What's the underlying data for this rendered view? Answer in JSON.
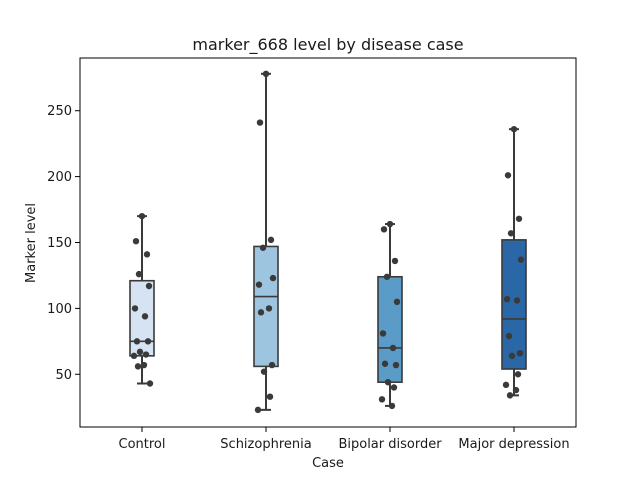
{
  "chart_data": {
    "type": "box",
    "title": "marker_668 level by disease case",
    "xlabel": "Case",
    "ylabel": "Marker level",
    "ylim": [
      10,
      290
    ],
    "yticks": [
      50,
      100,
      150,
      200,
      250
    ],
    "grid": false,
    "categories": [
      "Control",
      "Schizophrenia",
      "Bipolar disorder",
      "Major depression"
    ],
    "colors": [
      "#d6e3f2",
      "#9ec5e0",
      "#5b9bc8",
      "#2a67a6"
    ],
    "boxes": [
      {
        "whisker_low": 43,
        "q1": 64,
        "median": 75,
        "q3": 121,
        "whisker_high": 170
      },
      {
        "whisker_low": 23,
        "q1": 56,
        "median": 109,
        "q3": 147,
        "whisker_high": 278
      },
      {
        "whisker_low": 26,
        "q1": 44,
        "median": 70,
        "q3": 124,
        "whisker_high": 164
      },
      {
        "whisker_low": 34,
        "q1": 54,
        "median": 92,
        "q3": 152,
        "whisker_high": 236
      }
    ],
    "points": [
      [
        170,
        151,
        141,
        126,
        117,
        100,
        94,
        75,
        75,
        67,
        65,
        64,
        57,
        56,
        43
      ],
      [
        278,
        241,
        152,
        146,
        123,
        118,
        100,
        97,
        57,
        52,
        33,
        23
      ],
      [
        164,
        160,
        136,
        124,
        105,
        81,
        70,
        58,
        57,
        44,
        40,
        31,
        26
      ],
      [
        236,
        201,
        168,
        157,
        137,
        107,
        106,
        79,
        66,
        64,
        50,
        42,
        38,
        34
      ]
    ]
  }
}
